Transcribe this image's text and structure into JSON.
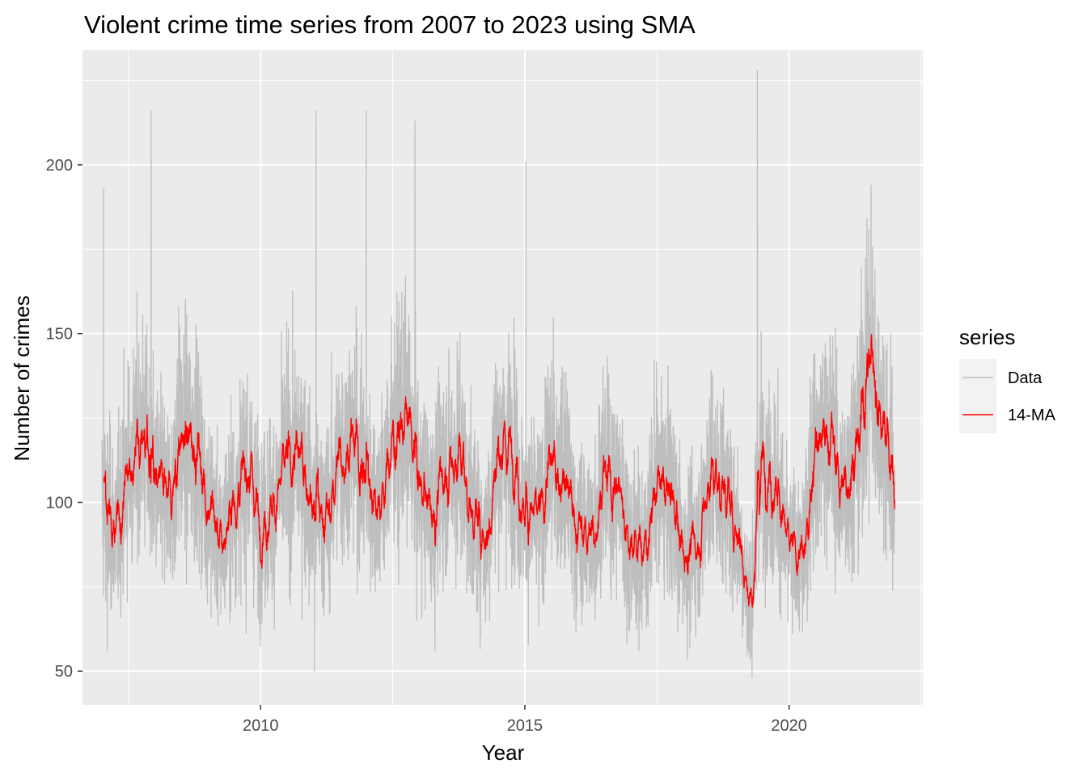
{
  "chart_data": {
    "type": "line",
    "title": "Violent crime time series from 2007 to 2023 using SMA",
    "xlabel": "Year",
    "ylabel": "Number of crimes",
    "xlim": [
      2006.63,
      2022.53
    ],
    "ylim": [
      40,
      234
    ],
    "x_ticks": [
      2010,
      2015,
      2020
    ],
    "x_tick_labels": [
      "2010",
      "2015",
      "2020"
    ],
    "y_ticks": [
      50,
      100,
      150,
      200
    ],
    "y_tick_labels": [
      "50",
      "100",
      "150",
      "200"
    ],
    "grid": true,
    "legend": {
      "title": "series",
      "position": "right"
    },
    "colors": {
      "panel": "#ebebeb",
      "grid": "#ffffff",
      "data": "#bebebe",
      "ma": "#ff0000"
    },
    "series": [
      {
        "name": "Data",
        "color": "#bebebe",
        "daily": true,
        "start": 2007.0,
        "end": 2022.0,
        "baseline_points": [
          [
            2007.0,
            100
          ],
          [
            2007.25,
            92
          ],
          [
            2007.5,
            110
          ],
          [
            2007.75,
            120
          ],
          [
            2008.0,
            106
          ],
          [
            2008.25,
            100
          ],
          [
            2008.5,
            118
          ],
          [
            2008.75,
            118
          ],
          [
            2009.0,
            100
          ],
          [
            2009.25,
            88
          ],
          [
            2009.5,
            101
          ],
          [
            2009.75,
            110
          ],
          [
            2010.0,
            93
          ],
          [
            2010.25,
            100
          ],
          [
            2010.5,
            112
          ],
          [
            2010.75,
            114
          ],
          [
            2011.0,
            98
          ],
          [
            2011.25,
            96
          ],
          [
            2011.5,
            114
          ],
          [
            2011.75,
            118
          ],
          [
            2012.0,
            106
          ],
          [
            2012.25,
            100
          ],
          [
            2012.5,
            118
          ],
          [
            2012.75,
            124
          ],
          [
            2013.0,
            105
          ],
          [
            2013.25,
            98
          ],
          [
            2013.5,
            110
          ],
          [
            2013.75,
            114
          ],
          [
            2014.0,
            96
          ],
          [
            2014.25,
            90
          ],
          [
            2014.5,
            116
          ],
          [
            2014.75,
            116
          ],
          [
            2015.0,
            96
          ],
          [
            2015.25,
            96
          ],
          [
            2015.5,
            112
          ],
          [
            2015.75,
            106
          ],
          [
            2016.0,
            92
          ],
          [
            2016.25,
            90
          ],
          [
            2016.5,
            108
          ],
          [
            2016.75,
            104
          ],
          [
            2017.0,
            88
          ],
          [
            2017.25,
            87
          ],
          [
            2017.5,
            105
          ],
          [
            2017.75,
            102
          ],
          [
            2018.0,
            85
          ],
          [
            2018.25,
            88
          ],
          [
            2018.5,
            108
          ],
          [
            2018.75,
            104
          ],
          [
            2019.0,
            92
          ],
          [
            2019.25,
            72
          ],
          [
            2019.5,
            112
          ],
          [
            2019.75,
            104
          ],
          [
            2020.0,
            86
          ],
          [
            2020.25,
            84
          ],
          [
            2020.5,
            118
          ],
          [
            2020.75,
            120
          ],
          [
            2021.0,
            104
          ],
          [
            2021.25,
            115
          ],
          [
            2021.5,
            142
          ],
          [
            2021.75,
            126
          ],
          [
            2022.0,
            104
          ]
        ],
        "spikes": [
          [
            2007.03,
            193
          ],
          [
            2007.93,
            216
          ],
          [
            2008.45,
            158
          ],
          [
            2011.05,
            216
          ],
          [
            2012.0,
            216
          ],
          [
            2012.92,
            213
          ],
          [
            2015.02,
            201
          ],
          [
            2019.4,
            228
          ],
          [
            2021.55,
            194
          ],
          [
            2007.1,
            56
          ],
          [
            2011.02,
            50
          ],
          [
            2019.3,
            48
          ],
          [
            2013.3,
            56
          ]
        ]
      },
      {
        "name": "14-MA",
        "color": "#ff0000",
        "window": 14,
        "start": 2007.0,
        "end": 2022.0
      }
    ]
  }
}
